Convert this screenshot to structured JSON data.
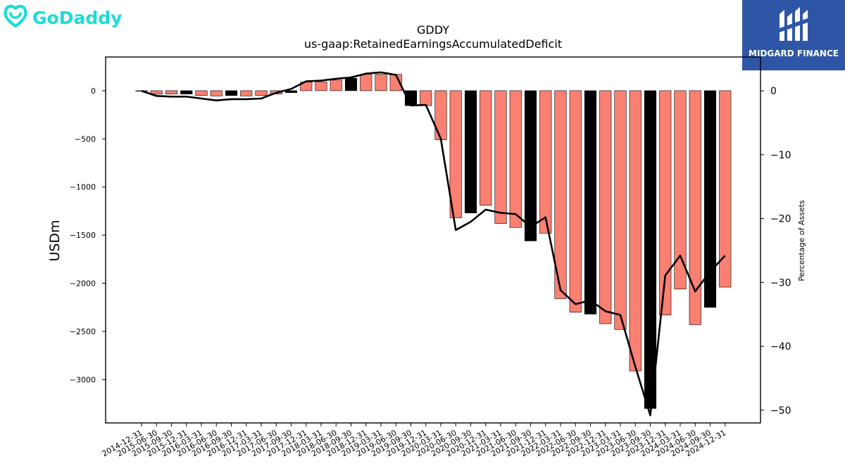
{
  "logos": {
    "left": "GoDaddy",
    "right": "MIDGARD FINANCE"
  },
  "colors": {
    "bar_default": "#fa8072",
    "bar_highlight": "#000000",
    "line": "#000000",
    "godaddy_brand": "#1bdbdb",
    "midgard_brand": "#2f56a6"
  },
  "chart_data": {
    "type": "bar",
    "title": "GDDY",
    "subtitle": "us-gaap:RetainedEarningsAccumulatedDeficit",
    "ylabel": "USDm",
    "y2label": "Percentage of Assets",
    "ylim": [
      -3450,
      350
    ],
    "y2lim": [
      -52.0,
      5.3
    ],
    "yticks": [
      0,
      -500,
      -1000,
      -1500,
      -2000,
      -2500,
      -3000
    ],
    "yticklabels": [
      "0",
      "−500",
      "−1000",
      "−1500",
      "−2000",
      "−2500",
      "−3000"
    ],
    "y2ticks": [
      0,
      -10,
      -20,
      -30,
      -40,
      -50
    ],
    "y2ticklabels": [
      "0",
      "−10",
      "−20",
      "−30",
      "−40",
      "−50"
    ],
    "grid": false,
    "categories": [
      "2014-12-31",
      "2015-06-30",
      "2015-09-30",
      "2015-12-31",
      "2016-03-31",
      "2016-06-30",
      "2016-09-30",
      "2016-12-31",
      "2017-03-31",
      "2017-06-30",
      "2017-09-30",
      "2017-12-31",
      "2018-03-31",
      "2018-06-30",
      "2018-09-30",
      "2018-12-31",
      "2019-03-31",
      "2019-06-30",
      "2019-09-30",
      "2019-12-31",
      "2020-03-31",
      "2020-06-30",
      "2020-09-30",
      "2020-12-31",
      "2021-03-31",
      "2021-06-30",
      "2021-09-30",
      "2021-12-31",
      "2022-03-31",
      "2022-06-30",
      "2022-09-30",
      "2022-12-31",
      "2023-03-31",
      "2023-06-30",
      "2023-09-30",
      "2023-12-31",
      "2024-03-31",
      "2024-06-30",
      "2024-09-30",
      "2024-12-31"
    ],
    "series": [
      {
        "kind": "bar",
        "axis": "left",
        "values": [
          0,
          -35,
          -35,
          -35,
          -50,
          -55,
          -50,
          -55,
          -50,
          -35,
          -20,
          90,
          90,
          110,
          130,
          170,
          170,
          170,
          -155,
          -155,
          -510,
          -1320,
          -1270,
          -1190,
          -1380,
          -1420,
          -1560,
          -1480,
          -2160,
          -2300,
          -2320,
          -2420,
          -2480,
          -2910,
          -3300,
          -2330,
          -2060,
          -2430,
          -2250,
          -2040
        ],
        "highlight": [
          false,
          false,
          false,
          true,
          false,
          false,
          true,
          false,
          false,
          false,
          true,
          false,
          false,
          false,
          true,
          false,
          false,
          false,
          true,
          false,
          false,
          false,
          true,
          false,
          false,
          false,
          true,
          false,
          false,
          false,
          true,
          false,
          false,
          false,
          true,
          false,
          false,
          false,
          true,
          false
        ]
      },
      {
        "kind": "line",
        "axis": "right",
        "values": [
          0,
          -0.8,
          -0.9,
          -0.9,
          -1.2,
          -1.5,
          -1.3,
          -1.3,
          -1.2,
          -0.3,
          0.3,
          1.5,
          1.6,
          1.9,
          2.1,
          2.7,
          2.9,
          2.5,
          -2.3,
          -2.2,
          -7.5,
          -21.8,
          -20.5,
          -18.6,
          -19.1,
          -19.3,
          -21.3,
          -19.8,
          -31.2,
          -33.4,
          -32.8,
          -34.5,
          -35.1,
          -43.2,
          -50.8,
          -28.9,
          -25.8,
          -31.4,
          -28.3,
          -25.8
        ]
      }
    ]
  }
}
